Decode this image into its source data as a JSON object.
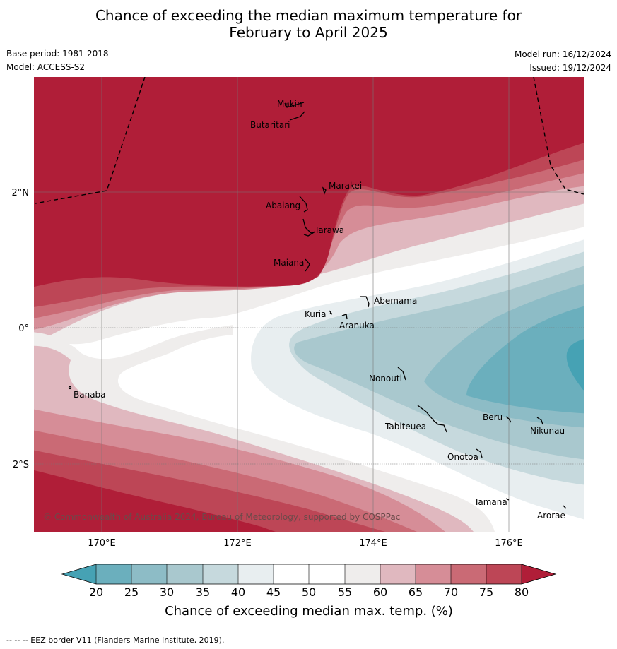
{
  "title_line1": "Chance of exceeding the median maximum temperature for",
  "title_line2": "February to April 2025",
  "meta": {
    "base_period": "Base period: 1981-2018",
    "model": "Model: ACCESS-S2",
    "model_run": "Model run: 16/12/2024",
    "issued": "Issued: 19/12/2024"
  },
  "axes": {
    "lon_ticks": [
      "170°E",
      "172°E",
      "174°E",
      "176°E"
    ],
    "lat_ticks": [
      "2°N",
      "0°",
      "2°S"
    ]
  },
  "places": {
    "makin": "Makin",
    "butaritari": "Butaritari",
    "marakei": "Marakei",
    "abaiang": "Abaiang",
    "tarawa": "Tarawa",
    "maiana": "Maiana",
    "abemama": "Abemama",
    "kuria": "Kuria",
    "aranuka": "Aranuka",
    "banaba": "Banaba",
    "nonouti": "Nonouti",
    "beru": "Beru",
    "tabiteuea": "Tabiteuea",
    "nikunau": "Nikunau",
    "onotoa": "Onotoa",
    "tamana": "Tamana",
    "arorae": "Arorae"
  },
  "copyright": "© Commonwealth of Australia 2024, Bureau of Meteorology, supported by COSPPac",
  "colorbar": {
    "ticks": [
      "20",
      "25",
      "30",
      "35",
      "40",
      "45",
      "50",
      "55",
      "60",
      "65",
      "70",
      "75",
      "80"
    ],
    "colors": {
      "lt20": "#46a2b4",
      "20_25": "#6bafbd",
      "25_30": "#8dbcc6",
      "30_35": "#a9c8ce",
      "35_40": "#c6d9dd",
      "40_45": "#e8eef0",
      "45_55": "#ffffff",
      "55_60": "#efedec",
      "60_65": "#e0b8bf",
      "65_70": "#d68d97",
      "70_75": "#ca6a75",
      "75_80": "#bd4656",
      "gt80": "#b01e38"
    },
    "title": "Chance of exceeding median max. temp. (%)"
  },
  "footer": "--  --  -- EEZ border V11 (Flanders Marine Institute, 2019)."
}
